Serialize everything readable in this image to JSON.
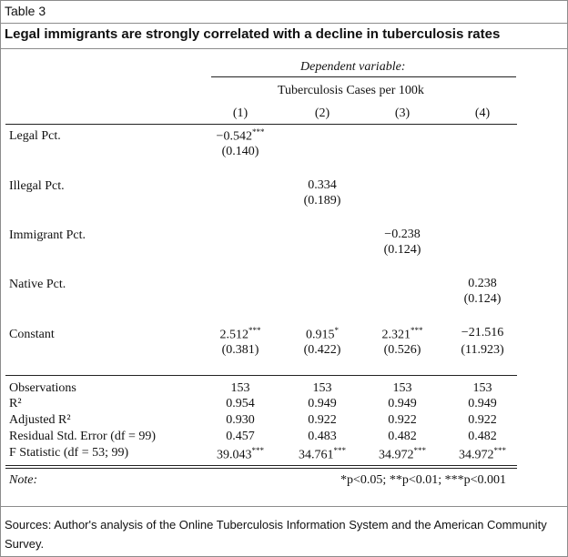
{
  "header": {
    "label": "Table 3",
    "title": "Legal immigrants are strongly correlated with a decline in tuberculosis rates"
  },
  "table": {
    "dependent_variable_label": "Dependent variable:",
    "dependent_variable": "Tuberculosis Cases per 100k",
    "model_numbers": [
      "(1)",
      "(2)",
      "(3)",
      "(4)"
    ],
    "coefficients": {
      "legal": {
        "label": "Legal Pct.",
        "estimate": "−0.542***",
        "se": "(0.140)"
      },
      "illegal": {
        "label": "Illegal Pct.",
        "estimate": "0.334",
        "se": "(0.189)"
      },
      "immigrant": {
        "label": "Immigrant Pct.",
        "estimate": "−0.238",
        "se": "(0.124)"
      },
      "native": {
        "label": "Native Pct.",
        "estimate": "0.238",
        "se": "(0.124)"
      },
      "constant": {
        "label": "Constant",
        "estimates": [
          "2.512***",
          "0.915*",
          "2.321***",
          "−21.516"
        ],
        "ses": [
          "(0.381)",
          "(0.422)",
          "(0.526)",
          "(11.923)"
        ]
      }
    },
    "stats": [
      {
        "label": "Observations",
        "values": [
          "153",
          "153",
          "153",
          "153"
        ]
      },
      {
        "label": "R²",
        "values": [
          "0.954",
          "0.949",
          "0.949",
          "0.949"
        ]
      },
      {
        "label": "Adjusted R²",
        "values": [
          "0.930",
          "0.922",
          "0.922",
          "0.922"
        ]
      },
      {
        "label": "Residual Std. Error (df = 99)",
        "values": [
          "0.457",
          "0.483",
          "0.482",
          "0.482"
        ]
      },
      {
        "label": "F Statistic (df = 53; 99)",
        "values": [
          "39.043***",
          "34.761***",
          "34.972***",
          "34.972***"
        ]
      }
    ],
    "note_label": "Note:",
    "note_text": "*p<0.05; **p<0.01; ***p<0.001"
  },
  "sources": "Sources: Author's analysis of the Online Tuberculosis Information System and the American Community Survey."
}
